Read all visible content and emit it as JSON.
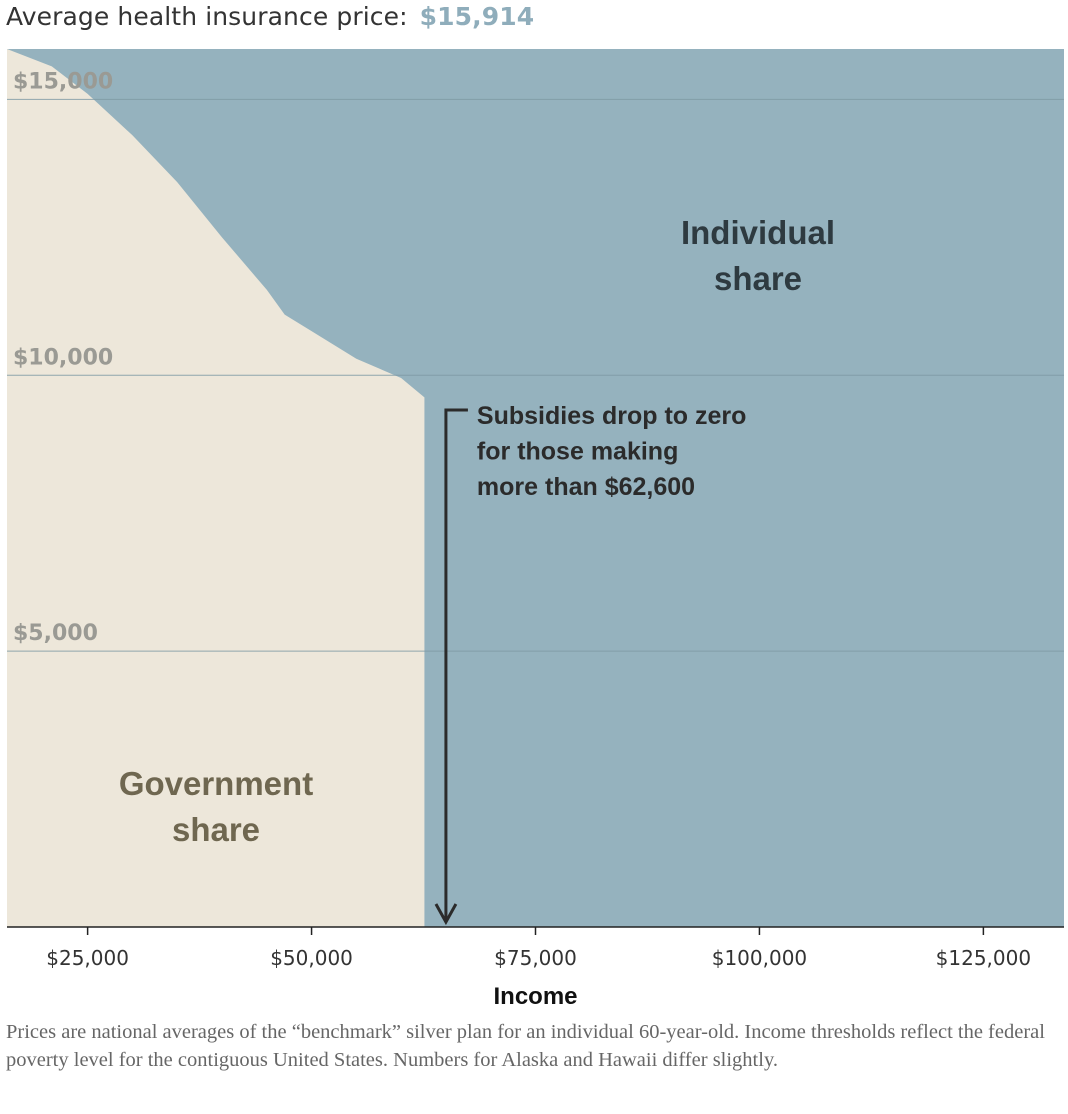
{
  "header": {
    "label": "Average health insurance price:",
    "price": "$15,914"
  },
  "chart_data": {
    "type": "area",
    "xlabel": "Income",
    "xlim": [
      16000,
      134000
    ],
    "ylim": [
      0,
      15914
    ],
    "x_ticks": [
      {
        "value": 25000,
        "label": "$25,000"
      },
      {
        "value": 50000,
        "label": "$50,000"
      },
      {
        "value": 75000,
        "label": "$75,000"
      },
      {
        "value": 100000,
        "label": "$100,000"
      },
      {
        "value": 125000,
        "label": "$125,000"
      }
    ],
    "y_ticks": [
      {
        "value": 5000,
        "label": "$5,000"
      },
      {
        "value": 10000,
        "label": "$10,000"
      },
      {
        "value": 15000,
        "label": "$15,000"
      }
    ],
    "total_price": 15914,
    "series": [
      {
        "name": "Government share",
        "label_lines": [
          "Government",
          "share"
        ],
        "color": "#ede7da",
        "x": [
          16000,
          21000,
          25000,
          30000,
          35000,
          40000,
          45000,
          47000,
          50000,
          55000,
          60000,
          62600
        ],
        "values": [
          15914,
          15600,
          15100,
          14350,
          13500,
          12500,
          11550,
          11100,
          10800,
          10300,
          9950,
          9600
        ]
      },
      {
        "name": "Individual share",
        "label_lines": [
          "Individual",
          "share"
        ],
        "color": "#95b2be",
        "fill_to": 15914
      }
    ],
    "annotation": {
      "lines": [
        "Subsidies drop to zero",
        "for those making",
        "more than $62,600"
      ],
      "x": 65000
    },
    "grid": true
  },
  "footnote": "Prices are national averages of the “benchmark” silver plan for an individual 60-year-old. Income thresholds reflect the federal poverty level for the contiguous United States. Numbers for Alaska and Hawaii differ slightly."
}
